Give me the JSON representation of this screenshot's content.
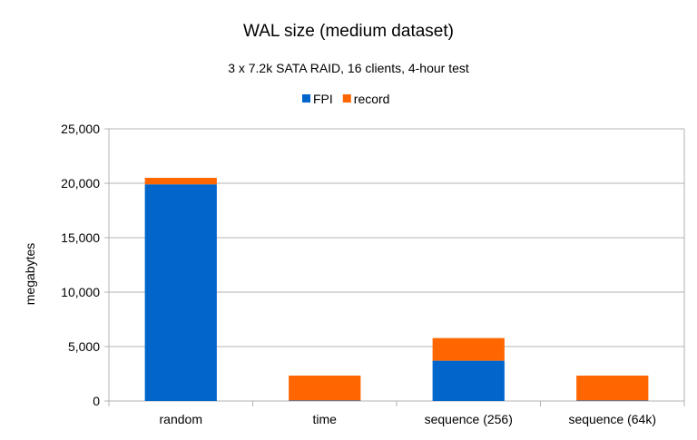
{
  "chart_data": {
    "type": "bar",
    "stacked": true,
    "title": "WAL size (medium dataset)",
    "subtitle": "3 x 7.2k SATA RAID, 16 clients, 4-hour test",
    "xlabel": "",
    "ylabel": "megabytes",
    "ylim": [
      0,
      25000
    ],
    "yticks": [
      0,
      5000,
      10000,
      15000,
      20000,
      25000
    ],
    "ytick_labels": [
      "0",
      "5,000",
      "10,000",
      "15,000",
      "20,000",
      "25,000"
    ],
    "grid": true,
    "legend_position": "top",
    "categories": [
      "random",
      "time",
      "sequence (256)",
      "sequence (64k)"
    ],
    "series": [
      {
        "name": "FPI",
        "color": "#0066cc",
        "values": [
          19900,
          50,
          3700,
          50
        ]
      },
      {
        "name": "record",
        "color": "#ff6600",
        "values": [
          600,
          2280,
          2080,
          2280
        ]
      }
    ]
  }
}
